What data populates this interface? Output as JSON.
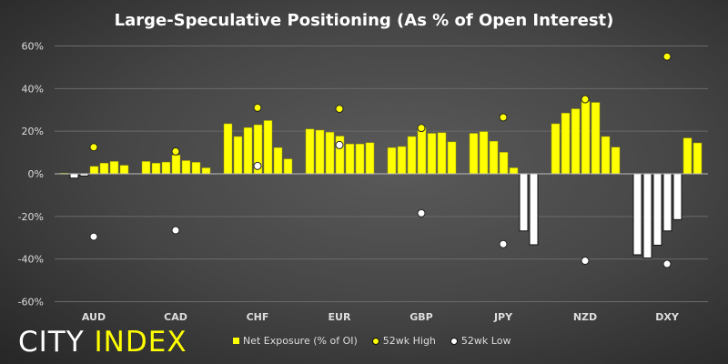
{
  "chart_data": {
    "type": "bar",
    "title": "Large-Speculative Positioning (As % of Open Interest)",
    "xlabel": "",
    "ylabel": "",
    "ylim": [
      -60,
      60
    ],
    "yticks": [
      "60%",
      "40%",
      "20%",
      "0%",
      "-20%",
      "-40%",
      "-60%"
    ],
    "ytick_values": [
      60,
      40,
      20,
      0,
      -20,
      -40,
      -60
    ],
    "categories": [
      "AUD",
      "CAD",
      "CHF",
      "EUR",
      "GBP",
      "JPY",
      "NZD",
      "DXY"
    ],
    "bars_per_category": 7,
    "series": [
      {
        "name": "Net Exposure (% of OI)",
        "type": "bar",
        "values": [
          [
            0.3,
            -2,
            -1,
            3.5,
            5,
            5.8,
            4
          ],
          [
            5.8,
            5,
            5.5,
            8.8,
            6.2,
            5.4,
            2.8
          ],
          [
            23.5,
            17.5,
            21.7,
            23,
            25,
            12.3,
            7
          ],
          [
            21,
            20.5,
            19.5,
            17.7,
            14,
            14,
            14.6
          ],
          [
            12.3,
            12.8,
            17.5,
            21.7,
            19,
            19.3,
            15
          ],
          [
            19,
            19.8,
            15.3,
            10.1,
            2.8,
            -26.8,
            -33.3
          ],
          [
            23.5,
            28.5,
            30.5,
            34,
            33.5,
            17.5,
            12.5
          ],
          [
            -38,
            -39.5,
            -33.5,
            -26.8,
            -21.5,
            16.8,
            14.5
          ]
        ]
      },
      {
        "name": "52wk High",
        "type": "scatter",
        "values": [
          12.5,
          10.5,
          31,
          30.5,
          21.5,
          26.5,
          35,
          55
        ]
      },
      {
        "name": "52wk Low",
        "type": "scatter",
        "values": [
          -29.5,
          -26.5,
          3.7,
          13.5,
          -18.5,
          -33,
          -40.8,
          -42.3
        ]
      }
    ],
    "colors": {
      "positive": "#ffff00",
      "negative": "#ffffff",
      "high": "#ffff00",
      "low": "#ffffff"
    },
    "grid": true,
    "legend_position": "bottom"
  },
  "logo": {
    "part1": "CITY",
    "part2": "INDEX"
  }
}
